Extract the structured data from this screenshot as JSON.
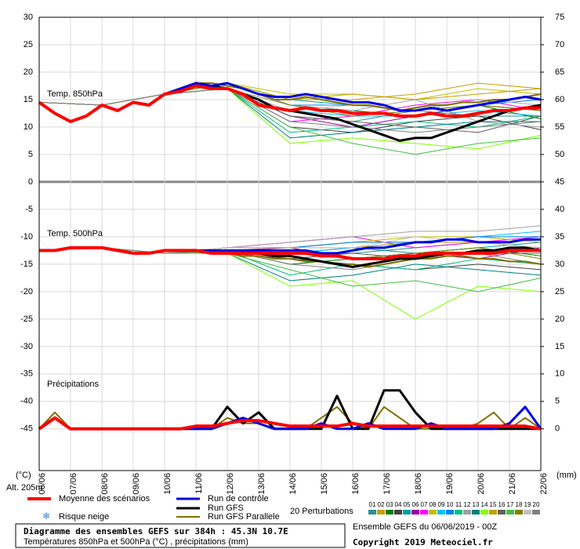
{
  "chart_data": {
    "type": "line",
    "title": "Diagramme des ensembles GEFS sur 384h : 45.3N 10.7E",
    "subtitle": "Températures 850hPa et 500hPa (°C) , précipitations (mm)",
    "annotations": {
      "t850": "Temp. 850hPa",
      "t500": "Temp. 500hPa",
      "precip": "Précipitations",
      "ylabel": "(°C)",
      "y2label": "(mm)",
      "altitude": "Alt. 205m",
      "snow": "Risque neige",
      "source": "Ensemble GEFS du 06/06/2019 - 00Z",
      "copyright": "Copyright 2019 Meteociel.fr"
    },
    "xlim": [
      0,
      16
    ],
    "xticks": [
      {
        "value": 0,
        "label": "06/06"
      },
      {
        "value": 1,
        "label": "07/06"
      },
      {
        "value": 2,
        "label": "08/06"
      },
      {
        "value": 3,
        "label": "09/06"
      },
      {
        "value": 4,
        "label": "10/06"
      },
      {
        "value": 5,
        "label": "11/06"
      },
      {
        "value": 6,
        "label": "12/06"
      },
      {
        "value": 7,
        "label": "13/06"
      },
      {
        "value": 8,
        "label": "14/06"
      },
      {
        "value": 9,
        "label": "15/06"
      },
      {
        "value": 10,
        "label": "16/06"
      },
      {
        "value": 11,
        "label": "17/06"
      },
      {
        "value": 12,
        "label": "18/06"
      },
      {
        "value": 13,
        "label": "19/06"
      },
      {
        "value": 14,
        "label": "20/06"
      },
      {
        "value": 15,
        "label": "21/06"
      },
      {
        "value": 16,
        "label": "22/06"
      }
    ],
    "ylim": [
      -52.6,
      30
    ],
    "yticks": [
      30,
      25,
      20,
      15,
      10,
      5,
      0,
      -5,
      -10,
      -15,
      -20,
      -25,
      -30,
      -35,
      -40,
      -45
    ],
    "y2lim": [
      -7.6,
      75
    ],
    "y2ticks": [
      75,
      70,
      65,
      60,
      55,
      50,
      45,
      40,
      35,
      30,
      25,
      20,
      15,
      10,
      5,
      0
    ],
    "grid": true,
    "x": [
      0,
      0.5,
      1,
      1.5,
      2,
      2.5,
      3,
      3.5,
      4,
      4.5,
      5,
      5.5,
      6,
      6.5,
      7,
      7.5,
      8,
      8.5,
      9,
      9.5,
      10,
      10.5,
      11,
      11.5,
      12,
      12.5,
      13,
      13.5,
      14,
      14.5,
      15,
      15.5,
      16
    ],
    "series": [
      {
        "name": "Run GFS Parallele",
        "color": "#807000",
        "line_width": 2,
        "t850": [
          14.5,
          12.5,
          11,
          12,
          14,
          13,
          14.5,
          14,
          16,
          17,
          18,
          18,
          17.5,
          17,
          16,
          15,
          15,
          15.5,
          15,
          14.5,
          14,
          14,
          13.5,
          13,
          13.5,
          14,
          14,
          14.5,
          14.5,
          15,
          15,
          15.5,
          16
        ],
        "t500": [
          -12.5,
          -12.5,
          -12,
          -12,
          -12,
          -12.5,
          -13,
          -13,
          -12.5,
          -12.5,
          -12.5,
          -13,
          -13,
          -13.5,
          -13.5,
          -14,
          -14,
          -14.5,
          -14.5,
          -15,
          -15,
          -15.5,
          -15,
          -14.5,
          -14,
          -14,
          -13.5,
          -13.5,
          -14,
          -14,
          -14.5,
          -14.5,
          -15
        ],
        "precip": [
          0,
          3,
          0,
          0,
          0,
          0,
          0,
          0,
          0,
          0,
          0,
          0,
          2,
          1,
          1,
          0,
          0,
          0,
          2,
          4,
          1,
          0,
          4,
          2,
          0,
          0,
          0,
          0,
          1,
          3,
          0,
          2,
          0
        ],
        "axis": "y2"
      },
      {
        "name": "Run GFS",
        "color": "#000000",
        "line_width": 3,
        "t850": [
          14.5,
          12.5,
          11,
          12,
          14,
          13,
          14.5,
          14,
          16,
          17,
          18,
          17.5,
          17,
          16,
          15,
          13.5,
          13,
          12.5,
          12,
          11.5,
          10.5,
          9.5,
          8.5,
          7.5,
          8,
          8,
          9,
          10,
          11,
          12,
          13,
          13.5,
          14
        ],
        "t500": [
          -12.5,
          -12.5,
          -12,
          -12,
          -12,
          -12.5,
          -13,
          -13,
          -12.5,
          -12.5,
          -12.5,
          -13,
          -13,
          -13,
          -13,
          -13.5,
          -13.5,
          -14,
          -14.5,
          -15,
          -15.5,
          -15,
          -14.5,
          -14,
          -14,
          -13.5,
          -13,
          -13,
          -12.5,
          -12.5,
          -12,
          -12,
          -12.5
        ],
        "precip": [
          0,
          2,
          0,
          0,
          0,
          0,
          0,
          0,
          0,
          0,
          0,
          0,
          4,
          1,
          3,
          0,
          0,
          0,
          0,
          6,
          0,
          0,
          7,
          7,
          3,
          0,
          0,
          0,
          0,
          0,
          0,
          0,
          0
        ],
        "axis": "y2"
      },
      {
        "name": "Run de contrôle",
        "color": "#0000e0",
        "line_width": 3,
        "t850": [
          14.5,
          12.5,
          11,
          12,
          14,
          13,
          14.5,
          14,
          16,
          17,
          18,
          17.5,
          18,
          17,
          16,
          15.5,
          15.5,
          16,
          15.5,
          15,
          14.5,
          14.5,
          14,
          13,
          13,
          13.5,
          13,
          13.5,
          14,
          14.5,
          15,
          15.5,
          15
        ],
        "t500": [
          -12.5,
          -12.5,
          -12,
          -12,
          -12,
          -12.5,
          -13,
          -13,
          -12.5,
          -12.5,
          -12.5,
          -12.5,
          -12.5,
          -12.5,
          -12.5,
          -12.5,
          -12.5,
          -12.5,
          -13,
          -13,
          -12.5,
          -12,
          -12,
          -11.5,
          -11,
          -11,
          -10.5,
          -10.5,
          -11,
          -11,
          -11,
          -10.5,
          -10.5
        ],
        "precip": [
          0,
          2,
          0,
          0,
          0,
          0,
          0,
          0,
          0,
          0,
          0,
          0,
          1,
          2,
          1,
          0,
          0,
          0,
          1,
          0,
          0,
          1,
          0,
          0,
          0,
          1,
          0,
          0,
          0,
          0,
          1,
          4,
          0
        ],
        "axis": "y2"
      },
      {
        "name": "Moyenne des scénarios",
        "color": "#ff0000",
        "line_width": 4,
        "t850": [
          14.5,
          12.5,
          11,
          12,
          14,
          13,
          14.5,
          14,
          16,
          16.5,
          17.5,
          17,
          17,
          16,
          14,
          13.5,
          13,
          13.5,
          13,
          13,
          12.5,
          12.5,
          12.5,
          12,
          12,
          12.5,
          12,
          12,
          12.5,
          13,
          13,
          13.5,
          13.5
        ],
        "t500": [
          -12.5,
          -12.5,
          -12,
          -12,
          -12,
          -12.5,
          -13,
          -13,
          -12.5,
          -12.5,
          -12.5,
          -13,
          -13,
          -13,
          -13,
          -13,
          -13,
          -13,
          -13.5,
          -13.5,
          -14,
          -14,
          -14,
          -13.5,
          -13.5,
          -13,
          -13,
          -13,
          -13,
          -13,
          -12.5,
          -12.5,
          -12.5
        ],
        "precip": [
          0,
          2,
          0,
          0,
          0,
          0,
          0,
          0,
          0,
          0,
          0.5,
          0.5,
          1,
          1.5,
          1.5,
          1,
          0.5,
          0.5,
          0.5,
          0.5,
          1,
          0.5,
          0.5,
          0.5,
          0.5,
          0.5,
          0.5,
          0.5,
          0.5,
          0.5,
          0.5,
          0.5,
          0
        ],
        "axis": "y2"
      }
    ],
    "perturbations": {
      "label": "20 Perturbations",
      "x": [
        0,
        2,
        4,
        6,
        8,
        10,
        12,
        14,
        16
      ],
      "members": [
        {
          "name": "01",
          "color": "#2f8f8f",
          "t850": [
            14.5,
            14,
            16,
            17,
            12,
            11,
            13,
            12,
            12
          ],
          "t500": [
            -12.5,
            -12,
            -13,
            -12.5,
            -13,
            -13,
            -12,
            -11,
            -12
          ]
        },
        {
          "name": "02",
          "color": "#c8a000",
          "t850": [
            14.5,
            14,
            16,
            18,
            15,
            15,
            16,
            18,
            17
          ],
          "t500": [
            -12.5,
            -12,
            -13,
            -12,
            -12,
            -11,
            -11,
            -10,
            -11
          ]
        },
        {
          "name": "03",
          "color": "#008000",
          "t850": [
            14.5,
            14,
            16,
            17,
            14,
            13,
            12,
            14,
            11.5
          ],
          "t500": [
            -12.5,
            -12,
            -13,
            -12.5,
            -15,
            -14,
            -13,
            -12,
            -13.5
          ]
        },
        {
          "name": "04",
          "color": "#404040",
          "t850": [
            14.5,
            14,
            16,
            17,
            10,
            9,
            11,
            12,
            9.5
          ],
          "t500": [
            -12.5,
            -12,
            -13,
            -13,
            -14,
            -15,
            -16,
            -15,
            -16
          ]
        },
        {
          "name": "05",
          "color": "#00a0a0",
          "t850": [
            14.5,
            14,
            16,
            18,
            15,
            14,
            13,
            15,
            14
          ],
          "t500": [
            -12.5,
            -12,
            -13,
            -12.5,
            -13,
            -12,
            -13,
            -12,
            -11
          ]
        },
        {
          "name": "06",
          "color": "#a000a0",
          "t850": [
            14.5,
            14,
            16,
            17,
            12,
            10,
            12,
            14,
            13
          ],
          "t500": [
            -12.5,
            -12,
            -13,
            -12.5,
            -12,
            -14,
            -13,
            -14,
            -12
          ]
        },
        {
          "name": "07",
          "color": "#ff00ff",
          "t850": [
            14.5,
            14,
            16,
            17,
            11,
            12,
            14,
            15,
            13
          ],
          "t500": [
            -12.5,
            -12,
            -13,
            -12,
            -11,
            -10,
            -12,
            -11,
            -10
          ]
        },
        {
          "name": "08",
          "color": "#c0c000",
          "t850": [
            14.5,
            14,
            16,
            18,
            16,
            16,
            15,
            17,
            16
          ],
          "t500": [
            -12.5,
            -12,
            -13,
            -12,
            -12,
            -11,
            -10,
            -10,
            -11
          ]
        },
        {
          "name": "09",
          "color": "#00c0ff",
          "t850": [
            14.5,
            14,
            16,
            17,
            13,
            12,
            12,
            13,
            12
          ],
          "t500": [
            -12.5,
            -12,
            -13,
            -12.5,
            -13,
            -12,
            -11,
            -10,
            -9
          ]
        },
        {
          "name": "10",
          "color": "#0080ff",
          "t850": [
            14.5,
            14,
            16,
            18,
            14,
            14,
            13,
            14,
            15
          ],
          "t500": [
            -12.5,
            -12,
            -13,
            -12,
            -12,
            -11,
            -11,
            -10,
            -10
          ]
        },
        {
          "name": "11",
          "color": "#00c080",
          "t850": [
            14.5,
            14,
            16,
            17,
            9,
            10,
            11,
            10,
            12
          ],
          "t500": [
            -12.5,
            -12,
            -13,
            -12.5,
            -17,
            -15,
            -16,
            -14,
            -15
          ]
        },
        {
          "name": "12",
          "color": "#a0a0a0",
          "t850": [
            14.5,
            14,
            16,
            17,
            14,
            13,
            15,
            11,
            10
          ],
          "t500": [
            -12.5,
            -12,
            -13,
            -12,
            -11,
            -10,
            -9,
            -9,
            -8
          ]
        },
        {
          "name": "13",
          "color": "#008080",
          "t850": [
            14.5,
            14,
            16,
            17,
            8,
            9,
            10,
            11,
            11
          ],
          "t500": [
            -12.5,
            -12,
            -13,
            -13,
            -18,
            -17,
            -15,
            -16,
            -17
          ]
        },
        {
          "name": "14",
          "color": "#80ff00",
          "t850": [
            14.5,
            14,
            16,
            17,
            7,
            8,
            7,
            6,
            8.5
          ],
          "t500": [
            -12.5,
            -12,
            -13,
            -13,
            -19,
            -18,
            -25,
            -19,
            -20
          ]
        },
        {
          "name": "15",
          "color": "#c0a000",
          "t850": [
            14.5,
            14,
            16,
            18,
            15,
            16,
            15,
            16,
            17
          ],
          "t500": [
            -12.5,
            -12,
            -13,
            -12,
            -12,
            -12,
            -11,
            -11,
            -12
          ]
        },
        {
          "name": "16",
          "color": "#606060",
          "t850": [
            14.5,
            14,
            16,
            17,
            12,
            11,
            10,
            9,
            12
          ],
          "t500": [
            -12.5,
            -12,
            -13,
            -12.5,
            -14,
            -13,
            -14,
            -13,
            -13
          ]
        },
        {
          "name": "17",
          "color": "#40c040",
          "t850": [
            14.5,
            14,
            16,
            17,
            10,
            7,
            5,
            7,
            8
          ],
          "t500": [
            -12.5,
            -12,
            -13,
            -13,
            -16,
            -19,
            -18,
            -20,
            -17.5
          ]
        },
        {
          "name": "18",
          "color": "#808000",
          "t850": [
            14.5,
            14,
            16,
            18,
            14,
            12,
            13,
            14,
            13
          ],
          "t500": [
            -12.5,
            -12,
            -13,
            -12.5,
            -13,
            -14,
            -13,
            -12,
            -14
          ]
        },
        {
          "name": "19",
          "color": "#c0c0c0",
          "t850": [
            14.5,
            14,
            16,
            17,
            13,
            14,
            13,
            15,
            14
          ],
          "t500": [
            -12.5,
            -12,
            -13,
            -12,
            -12,
            -12,
            -10,
            -11,
            -12
          ]
        },
        {
          "name": "20",
          "color": "#808080",
          "t850": [
            14.5,
            14,
            16,
            17,
            11,
            10,
            9,
            10,
            11
          ],
          "t500": [
            -12.5,
            -12,
            -13,
            -12.5,
            -15,
            -16,
            -14,
            -13,
            -15
          ]
        }
      ]
    }
  }
}
